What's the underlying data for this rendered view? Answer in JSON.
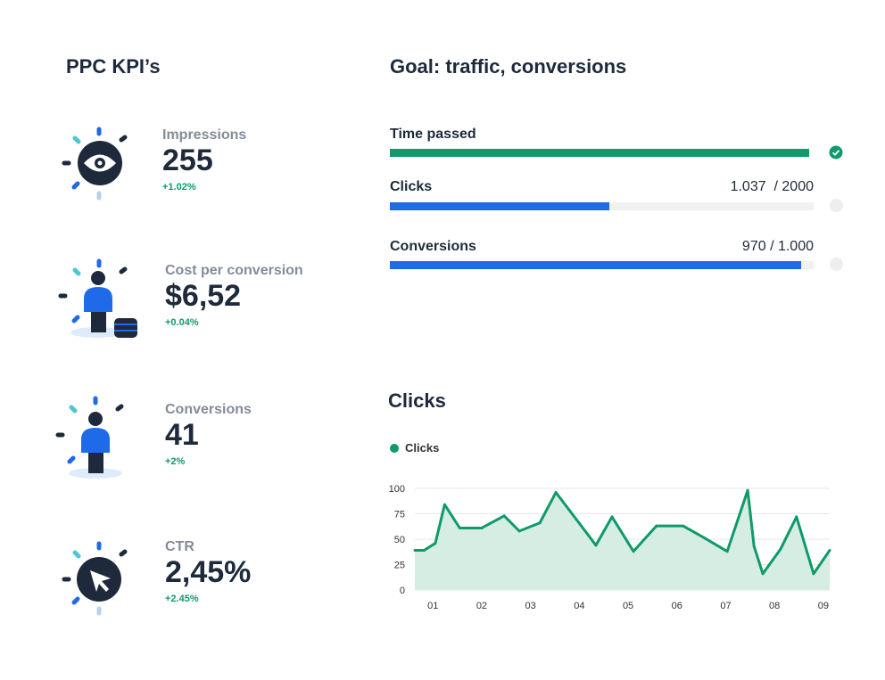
{
  "left": {
    "title": "PPC KPI’s",
    "kpis": [
      {
        "label": "Impressions",
        "value": "255",
        "change": "+1.02%",
        "icon": "eye-icon"
      },
      {
        "label": "Cost per conversion",
        "value": "$6,52",
        "change": "+0.04%",
        "icon": "person-coins-icon"
      },
      {
        "label": "Conversions",
        "value": "41",
        "change": "+2%",
        "icon": "person-icon"
      },
      {
        "label": "CTR",
        "value": "2,45%",
        "change": "+2.45%",
        "icon": "cursor-icon"
      }
    ]
  },
  "goals": {
    "title": "Goal: traffic, conversions",
    "items": [
      {
        "label": "Time passed",
        "value": "",
        "progress": 1.0,
        "color": "#0f9a6a",
        "done": true
      },
      {
        "label": "Clicks",
        "value": "1.037  / 2000",
        "progress": 0.5185,
        "color": "#1f6ae8",
        "done": false
      },
      {
        "label": "Conversions",
        "value": "970 / 1.000",
        "progress": 0.97,
        "color": "#1f6ae8",
        "done": false
      }
    ]
  },
  "colors": {
    "green": "#0f9a6a",
    "blue": "#1f6ae8",
    "dark": "#1e2a3b",
    "fill": "#d6ede3"
  },
  "chart_data": {
    "type": "area",
    "title": "Clicks",
    "legend": "top-left",
    "grid": true,
    "ylim": [
      0,
      100
    ],
    "yticks": [
      "0",
      "25",
      "50",
      "75",
      "100"
    ],
    "xticks": [
      "01",
      "02",
      "03",
      "04",
      "05",
      "06",
      "07",
      "08",
      "09"
    ],
    "xlim": [
      0.63,
      9.13
    ],
    "series": [
      {
        "name": "Clicks",
        "color": "#0f9a6a",
        "x": [
          0.63,
          0.82,
          1.05,
          1.24,
          1.55,
          2.0,
          2.46,
          2.77,
          3.19,
          3.52,
          4.01,
          4.34,
          4.67,
          5.11,
          5.58,
          6.13,
          6.57,
          7.03,
          7.45,
          7.58,
          7.76,
          8.12,
          8.45,
          8.8,
          9.13
        ],
        "y": [
          39,
          39,
          46,
          84,
          61,
          61,
          73,
          58,
          66,
          96,
          65,
          44,
          72,
          38,
          63,
          63,
          51,
          38,
          98,
          43,
          16,
          40,
          72,
          16,
          39
        ]
      }
    ]
  }
}
